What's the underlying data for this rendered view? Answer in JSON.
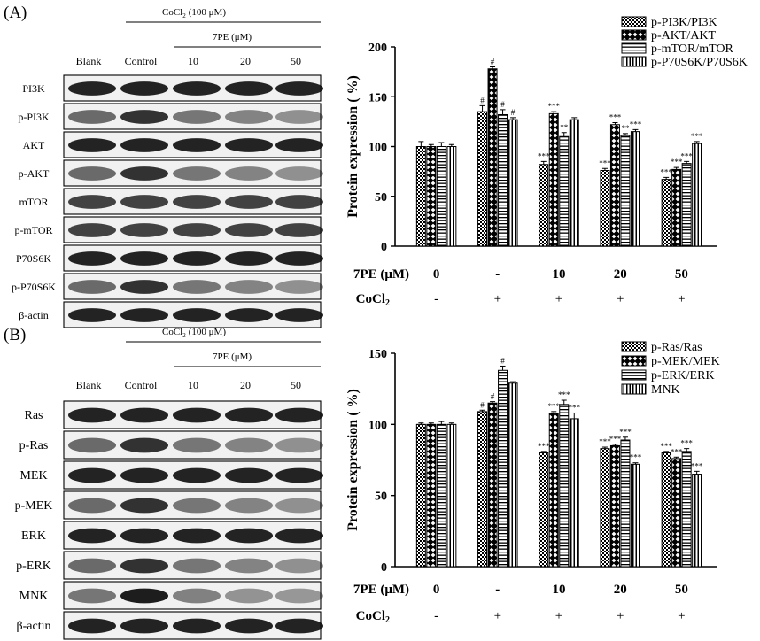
{
  "panels": [
    {
      "id": "A",
      "panel_label": "(A)",
      "blot": {
        "treatment_label": "CoCl",
        "treatment_sub": "2",
        "treatment_conc": "(100 μM)",
        "dose_label": "7PE (μM)",
        "lanes": [
          "Blank",
          "Control",
          "10",
          "20",
          "50"
        ],
        "rows": [
          "PI3K",
          "p-PI3K",
          "AKT",
          "p-AKT",
          "mTOR",
          "p-mTOR",
          "P70S6K",
          "p-P70S6K",
          "β-actin"
        ]
      },
      "chart": {
        "ylabel": "Protein expression ( %)",
        "yticks": [
          "0",
          "50",
          "100",
          "150",
          "200"
        ],
        "row1_label": "7PE (μM)",
        "row1_values": [
          "0",
          "-",
          "10",
          "20",
          "50"
        ],
        "row2_label": "CoCl",
        "row2_sub": "2",
        "row2_values": [
          "-",
          "+",
          "+",
          "+",
          "+"
        ]
      }
    },
    {
      "id": "B",
      "panel_label": "(B)",
      "blot": {
        "treatment_label": "CoCl",
        "treatment_sub": "2",
        "treatment_conc": "(100 μM)",
        "dose_label": "7PE (μM)",
        "lanes": [
          "Blank",
          "Control",
          "10",
          "20",
          "50"
        ],
        "rows": [
          "Ras",
          "p-Ras",
          "MEK",
          "p-MEK",
          "ERK",
          "p-ERK",
          "MNK",
          "β-actin"
        ]
      },
      "chart": {
        "ylabel": "Protein expression ( %)",
        "yticks": [
          "0",
          "50",
          "100",
          "150"
        ],
        "row1_label": "7PE (μM)",
        "row1_values": [
          "0",
          "-",
          "10",
          "20",
          "50"
        ],
        "row2_label": "CoCl",
        "row2_sub": "2",
        "row2_values": [
          "-",
          "+",
          "+",
          "+",
          "+"
        ]
      }
    }
  ],
  "chart_data": [
    {
      "type": "bar",
      "categories": [
        "0",
        "-",
        "10",
        "20",
        "50"
      ],
      "ylim": [
        0,
        200
      ],
      "ylabel": "Protein expression ( %)",
      "legend_position": "top-right",
      "series": [
        {
          "name": "p-PI3K/PI3K",
          "values": [
            100,
            135,
            82,
            76,
            67
          ],
          "errors": [
            5,
            6,
            3,
            2,
            2
          ],
          "marks": [
            "",
            "#",
            "***",
            "***",
            "***"
          ],
          "pattern": "checker"
        },
        {
          "name": "p-AKT/AKT",
          "values": [
            100,
            178,
            133,
            122,
            77
          ],
          "errors": [
            2,
            2,
            2,
            2,
            2
          ],
          "marks": [
            "",
            "#",
            "***",
            "***",
            "***"
          ],
          "pattern": "diamond"
        },
        {
          "name": "p-mTOR/mTOR",
          "values": [
            100,
            132,
            110,
            111,
            83
          ],
          "errors": [
            4,
            5,
            4,
            2,
            2
          ],
          "marks": [
            "",
            "#",
            "**",
            "**",
            "***"
          ],
          "pattern": "hlines"
        },
        {
          "name": "p-P70S6K/P70S6K",
          "values": [
            100,
            127,
            127,
            115,
            103
          ],
          "errors": [
            2,
            2,
            2,
            2,
            2
          ],
          "marks": [
            "",
            "#",
            "",
            "***",
            "***"
          ],
          "pattern": "vlines"
        }
      ]
    },
    {
      "type": "bar",
      "categories": [
        "0",
        "-",
        "10",
        "20",
        "50"
      ],
      "ylim": [
        0,
        150
      ],
      "ylabel": "Protein expression ( %)",
      "legend_position": "top-right",
      "series": [
        {
          "name": "p-Ras/Ras",
          "values": [
            100,
            109,
            80,
            83,
            80
          ],
          "errors": [
            1,
            1,
            1,
            1,
            1
          ],
          "marks": [
            "",
            "#",
            "***",
            "***",
            "***"
          ],
          "pattern": "checker"
        },
        {
          "name": "p-MEK/MEK",
          "values": [
            100,
            115,
            108,
            85,
            76
          ],
          "errors": [
            1,
            1,
            1,
            1,
            1
          ],
          "marks": [
            "",
            "#",
            "***",
            "***",
            "***"
          ],
          "pattern": "diamond"
        },
        {
          "name": "p-ERK/ERK",
          "values": [
            100,
            138,
            114,
            89,
            81
          ],
          "errors": [
            2,
            3,
            3,
            2,
            2
          ],
          "marks": [
            "",
            "#",
            "***",
            "***",
            "***"
          ],
          "pattern": "hlines"
        },
        {
          "name": "MNK",
          "values": [
            100,
            129,
            104,
            72,
            65
          ],
          "errors": [
            1,
            1,
            4,
            1,
            2
          ],
          "marks": [
            "",
            "",
            "***",
            "***",
            "***"
          ],
          "pattern": "vlines"
        }
      ]
    }
  ]
}
